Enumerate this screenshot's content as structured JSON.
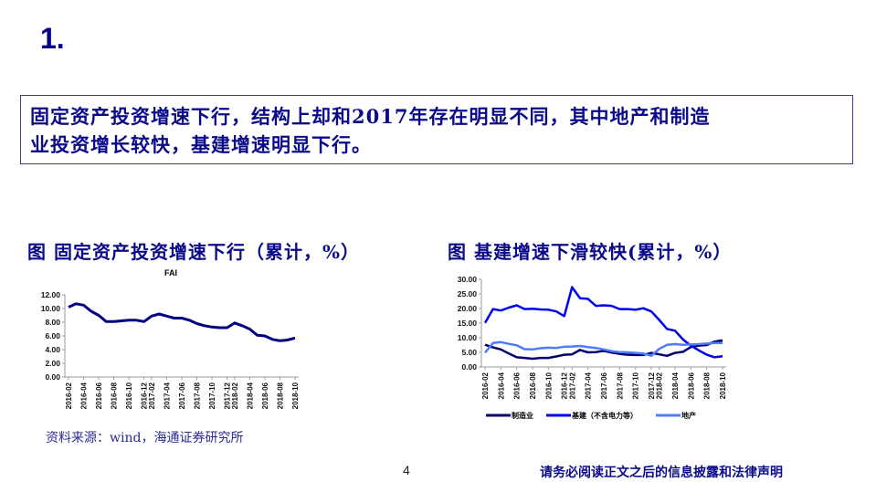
{
  "slide": {
    "number_label": "1."
  },
  "summary": {
    "line1": "固定资产投资增速下行，结构上却和2017年存在明显不同，其中地产和制造",
    "line2": "业投资增长较快，基建增速明显下行。"
  },
  "figures": {
    "left_title": "图 固定资产投资增速下行（累计，%）",
    "right_title": "图 基建增速下滑较快(累计，%）"
  },
  "colors": {
    "title_blue": "#0a0a8a",
    "fai_line": "#000080",
    "manufacturing_line": "#00006e",
    "infrastructure_line": "#0000ee",
    "real_estate_line": "#4d7cff"
  },
  "chart_data": [
    {
      "type": "line",
      "title": "FAI",
      "xlabel": "",
      "ylabel": "",
      "ylim": [
        0,
        12
      ],
      "yticks": [
        "0.00",
        "2.00",
        "4.00",
        "6.00",
        "8.00",
        "10.00",
        "12.00"
      ],
      "grid": false,
      "legend": "none",
      "x_tick_labels": [
        "2016-02",
        "2016-04",
        "2016-06",
        "2016-08",
        "2016-10",
        "2016-12",
        "2017-02",
        "2017-04",
        "2017-06",
        "2017-08",
        "2017-10",
        "2017-12",
        "2018-02",
        "2018-04",
        "2018-06",
        "2018-08",
        "2018-10"
      ],
      "x": [
        "2016-02",
        "2016-03",
        "2016-04",
        "2016-05",
        "2016-06",
        "2016-07",
        "2016-08",
        "2016-09",
        "2016-10",
        "2016-11",
        "2016-12",
        "2017-02",
        "2017-03",
        "2017-04",
        "2017-05",
        "2017-06",
        "2017-07",
        "2017-08",
        "2017-09",
        "2017-10",
        "2017-11",
        "2017-12",
        "2018-02",
        "2018-03",
        "2018-04",
        "2018-05",
        "2018-06",
        "2018-07",
        "2018-08",
        "2018-09",
        "2018-10"
      ],
      "series": [
        {
          "name": "FAI",
          "values": [
            10.2,
            10.7,
            10.5,
            9.6,
            9.0,
            8.1,
            8.1,
            8.2,
            8.3,
            8.3,
            8.1,
            8.9,
            9.2,
            8.9,
            8.6,
            8.6,
            8.3,
            7.8,
            7.5,
            7.3,
            7.2,
            7.2,
            7.9,
            7.5,
            7.0,
            6.1,
            6.0,
            5.5,
            5.3,
            5.4,
            5.7
          ]
        }
      ]
    },
    {
      "type": "line",
      "title": "",
      "xlabel": "",
      "ylabel": "",
      "ylim": [
        0,
        30
      ],
      "yticks": [
        "0.00",
        "5.00",
        "10.00",
        "15.00",
        "20.00",
        "25.00",
        "30.00"
      ],
      "grid": false,
      "legend": "bottom",
      "x_tick_labels": [
        "2016-02",
        "2016-04",
        "2016-06",
        "2016-08",
        "2016-10",
        "2016-12",
        "2017-02",
        "2017-04",
        "2017-06",
        "2017-08",
        "2017-10",
        "2017-12",
        "2018-02",
        "2018-04",
        "2018-06",
        "2018-08",
        "2018-10"
      ],
      "x": [
        "2016-02",
        "2016-03",
        "2016-04",
        "2016-05",
        "2016-06",
        "2016-07",
        "2016-08",
        "2016-09",
        "2016-10",
        "2016-11",
        "2016-12",
        "2017-02",
        "2017-03",
        "2017-04",
        "2017-05",
        "2017-06",
        "2017-07",
        "2017-08",
        "2017-09",
        "2017-10",
        "2017-11",
        "2017-12",
        "2018-02",
        "2018-03",
        "2018-04",
        "2018-05",
        "2018-06",
        "2018-07",
        "2018-08",
        "2018-09",
        "2018-10"
      ],
      "series": [
        {
          "name": "制造业",
          "values": [
            7.6,
            6.7,
            6.0,
            4.6,
            3.3,
            3.1,
            2.8,
            3.1,
            3.1,
            3.6,
            4.2,
            4.3,
            5.8,
            5.0,
            5.1,
            5.5,
            4.9,
            4.5,
            4.2,
            4.1,
            4.1,
            4.8,
            4.3,
            3.8,
            4.8,
            5.2,
            6.8,
            7.3,
            7.5,
            8.7,
            9.1
          ]
        },
        {
          "name": "基建（不含电力等）",
          "values": [
            15.1,
            19.8,
            19.3,
            20.3,
            21.1,
            19.8,
            19.9,
            19.7,
            19.6,
            19.0,
            17.4,
            27.3,
            23.5,
            23.3,
            20.9,
            21.1,
            20.9,
            19.8,
            19.8,
            19.6,
            20.1,
            19.0,
            16.1,
            13.0,
            12.4,
            9.4,
            7.3,
            5.7,
            4.2,
            3.3,
            3.7
          ]
        },
        {
          "name": "地产",
          "values": [
            4.9,
            8.2,
            8.5,
            7.9,
            7.4,
            6.1,
            6.0,
            6.4,
            6.6,
            6.5,
            6.9,
            7.0,
            7.2,
            6.8,
            6.5,
            6.0,
            5.4,
            5.1,
            5.0,
            4.8,
            4.6,
            3.8,
            6.2,
            7.6,
            7.8,
            7.6,
            7.7,
            7.8,
            8.0,
            8.2,
            8.2
          ]
        }
      ]
    }
  ],
  "chart1": {
    "title": "FAI",
    "yticks": [
      "12.00",
      "10.00",
      "8.00",
      "6.00",
      "4.00",
      "2.00",
      "0.00"
    ]
  },
  "chart2": {
    "yticks": [
      "30.00",
      "25.00",
      "20.00",
      "15.00",
      "10.00",
      "5.00",
      "0.00"
    ],
    "legend": {
      "manufacturing": "制造业",
      "infrastructure": "基建（不含电力等）",
      "real_estate": "地产"
    }
  },
  "xticks": [
    "2016-02",
    "2016-04",
    "2016-06",
    "2016-08",
    "2016-10",
    "2016-12",
    "2017-02",
    "2017-04",
    "2017-06",
    "2017-08",
    "2017-10",
    "2017-12",
    "2018-02",
    "2018-04",
    "2018-06",
    "2018-08",
    "2018-10"
  ],
  "footer": {
    "source": "资料来源：wind，海通证券研究所",
    "page_number": "4",
    "disclaimer": "请务必阅读正文之后的信息披露和法律声明"
  }
}
